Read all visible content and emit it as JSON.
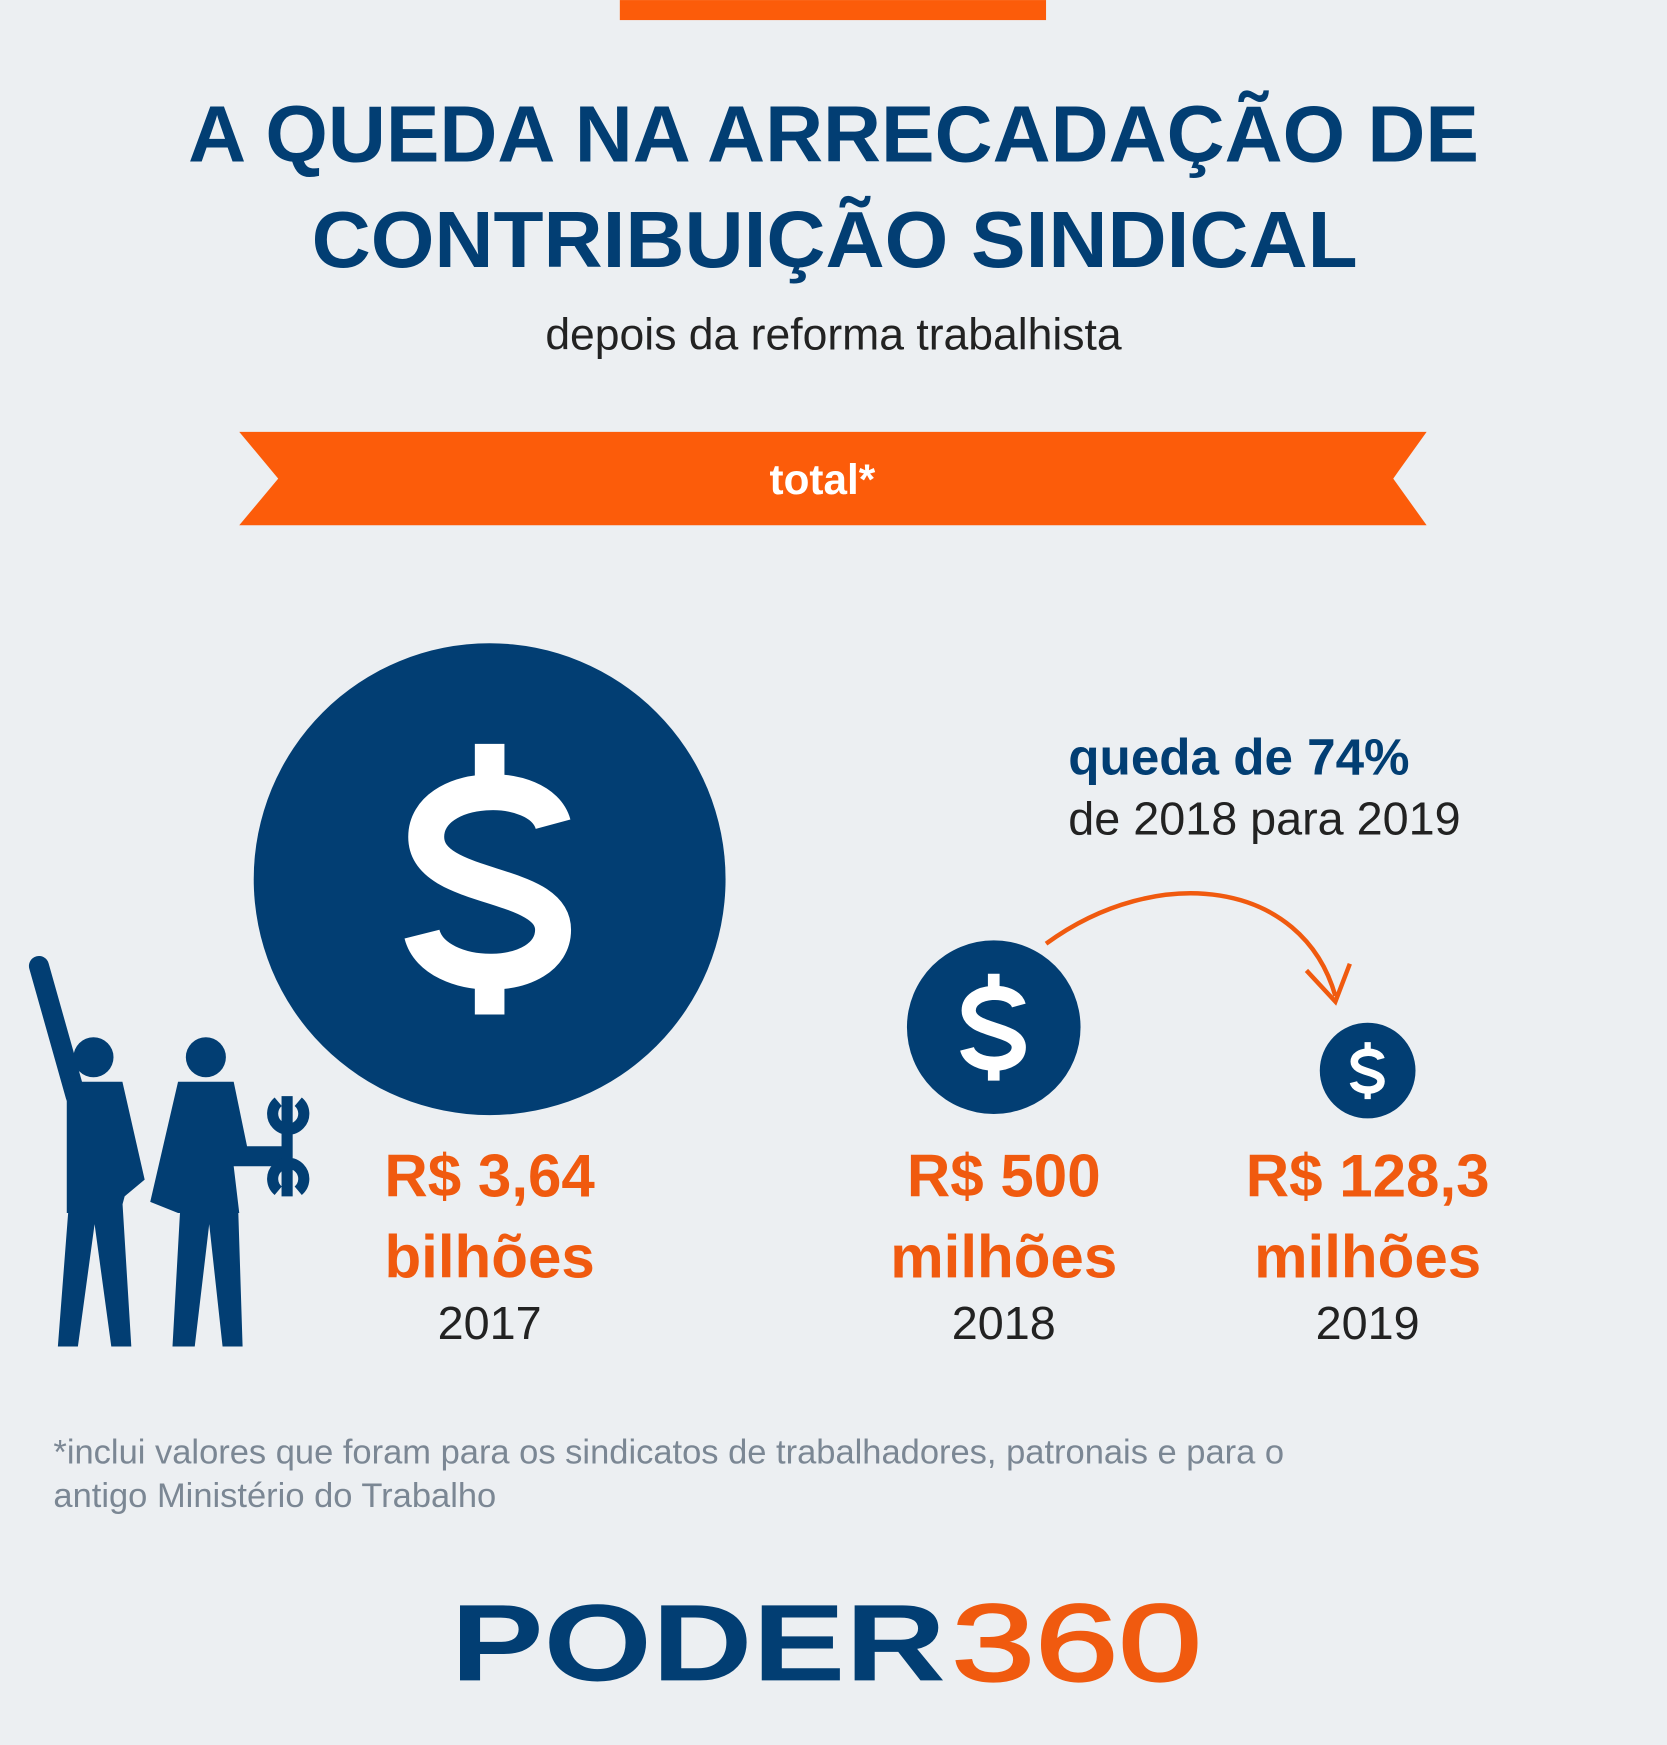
{
  "header": {
    "title_lines": [
      "A QUEDA NA ARRECADAÇÃO DE",
      "CONTRIBUIÇÃO SINDICAL"
    ],
    "subtitle": "depois da reforma trabalhista"
  },
  "banner": "total*",
  "callout": {
    "headline": "queda de 74%",
    "detail": "de 2018 para 2019"
  },
  "items": [
    {
      "amount": "R$ 3,64",
      "unit": "bilhões",
      "year": "2017"
    },
    {
      "amount": "R$ 500",
      "unit": "milhões",
      "year": "2018"
    },
    {
      "amount": "R$ 128,3",
      "unit": "milhões",
      "year": "2019"
    }
  ],
  "footnote_lines": [
    "*inclui valores que foram para os sindicatos de trabalhadores, patronais e para o",
    "antigo Ministério do Trabalho"
  ],
  "logo": {
    "part1": "PODER",
    "part2": "360"
  }
}
